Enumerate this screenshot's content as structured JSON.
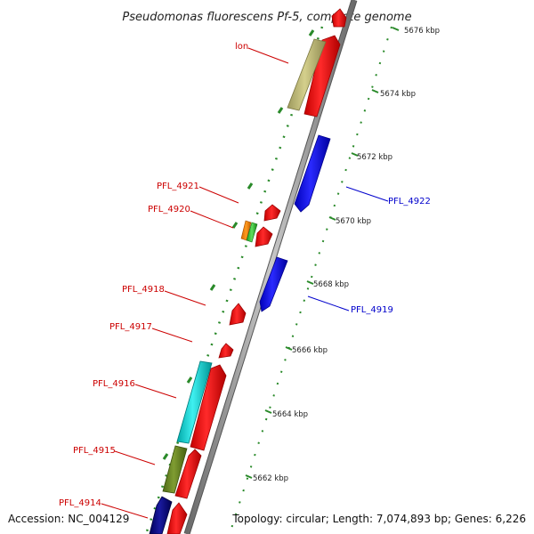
{
  "title": "Pseudomonas fluorescens Pf-5, complete genome",
  "footer": {
    "accession": "Accession: NC_004129",
    "stats": "Topology: circular; Length: 7,074,893 bp; Genes: 6,226"
  },
  "colors": {
    "forward_label": "#cc0000",
    "reverse_label": "#0000cc",
    "ticks": "#2a8a2a",
    "backbone": "#8a8a8a"
  },
  "kbp_labels": [
    "5676 kbp",
    "5674 kbp",
    "5672 kbp",
    "5670 kbp",
    "5668 kbp",
    "5666 kbp",
    "5664 kbp",
    "5662 kbp"
  ],
  "gene_labels": {
    "lon": "lon",
    "pfl4921": "PFL_4921",
    "pfl4920": "PFL_4920",
    "pfl4918": "PFL_4918",
    "pfl4917": "PFL_4917",
    "pfl4916": "PFL_4916",
    "pfl4915": "PFL_4915",
    "pfl4914": "PFL_4914",
    "pfl4922": "PFL_4922",
    "pfl4919": "PFL_4919"
  }
}
